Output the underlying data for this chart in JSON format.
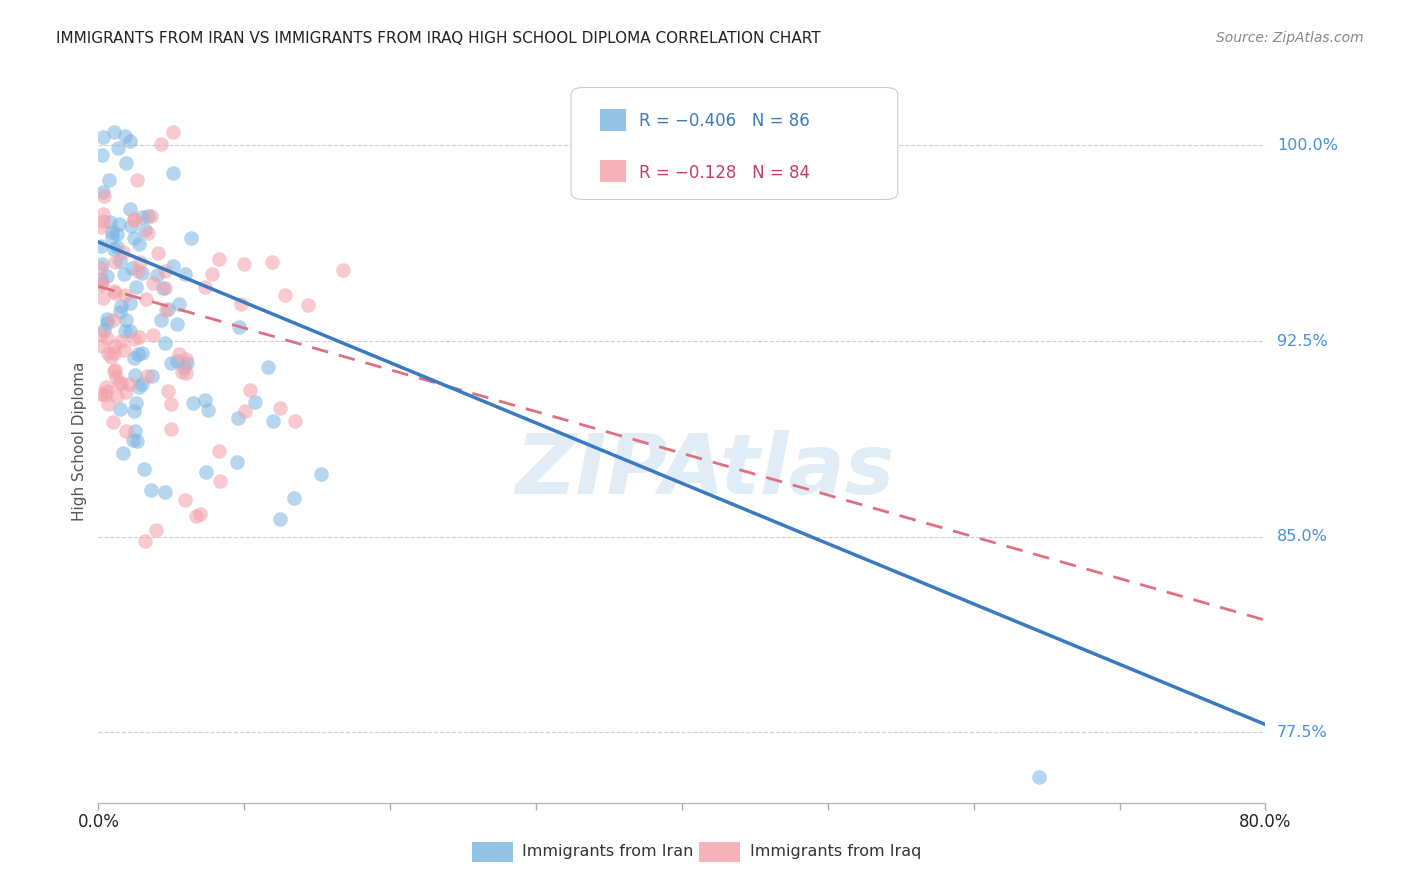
{
  "title": "IMMIGRANTS FROM IRAN VS IMMIGRANTS FROM IRAQ HIGH SCHOOL DIPLOMA CORRELATION CHART",
  "source": "Source: ZipAtlas.com",
  "ylabel": "High School Diploma",
  "legend_iran_text": "R = −0.406   N = 86",
  "legend_iraq_text": "R = −0.128   N = 84",
  "legend_label_iran": "Immigrants from Iran",
  "legend_label_iraq": "Immigrants from Iraq",
  "iran_color": "#7ab4e0",
  "iraq_color": "#f4a0a8",
  "iran_line_color": "#3a7abf",
  "iraq_line_color": "#e07080",
  "background_color": "#ffffff",
  "xmin": 0.0,
  "xmax": 0.8,
  "ymin": 0.748,
  "ymax": 1.025,
  "ytick_values": [
    1.0,
    0.925,
    0.85,
    0.775
  ],
  "ytick_labels": [
    "100.0%",
    "92.5%",
    "85.0%",
    "77.5%"
  ],
  "iran_line_x0": 0.0,
  "iran_line_y0": 0.963,
  "iran_line_x1": 0.8,
  "iran_line_y1": 0.778,
  "iraq_line_x0": 0.0,
  "iraq_line_y0": 0.946,
  "iraq_line_x1": 0.8,
  "iraq_line_y1": 0.818,
  "watermark_text": "ZIPAtlas",
  "watermark_color": "#c8dff0",
  "watermark_alpha": 0.55
}
